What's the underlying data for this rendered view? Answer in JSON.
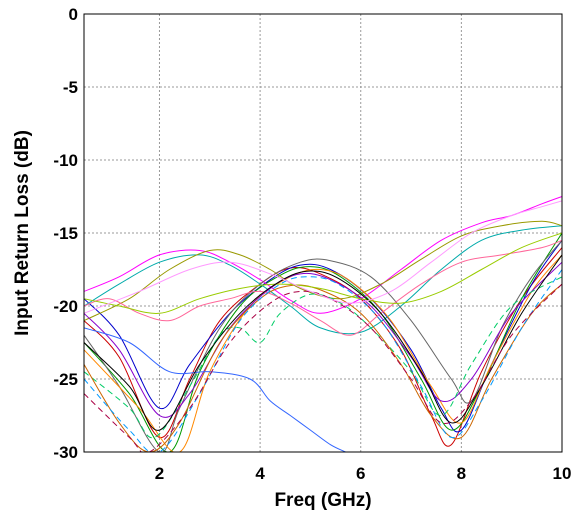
{
  "chart_data": {
    "type": "line",
    "title": "",
    "xlabel": "Freq (GHz)",
    "ylabel": "Input Return Loss (dB)",
    "xlim": [
      0.5,
      10
    ],
    "ylim": [
      -30,
      0
    ],
    "xticks": [
      2,
      4,
      6,
      8,
      10
    ],
    "yticks": [
      0,
      -5,
      -10,
      -15,
      -20,
      -25,
      -30
    ],
    "xtick_labels": [
      "2",
      "4",
      "6",
      "8",
      "10"
    ],
    "ytick_labels": [
      "0",
      "-5",
      "-10",
      "-15",
      "-20",
      "-25",
      "-30"
    ],
    "grid": true,
    "legend": "none",
    "series": [
      {
        "color": "#cc0000",
        "dash": "solid",
        "points": [
          [
            0.5,
            -21.0
          ],
          [
            1.2,
            -23.5
          ],
          [
            2.0,
            -29.0
          ],
          [
            2.6,
            -25.0
          ],
          [
            3.2,
            -21.0
          ],
          [
            4.0,
            -18.5
          ],
          [
            4.6,
            -17.4
          ],
          [
            5.2,
            -17.8
          ],
          [
            6.0,
            -19.5
          ],
          [
            6.8,
            -23.0
          ],
          [
            7.4,
            -27.5
          ],
          [
            7.8,
            -29.5
          ],
          [
            8.4,
            -24.5
          ],
          [
            9.2,
            -19.5
          ],
          [
            10.0,
            -16.0
          ]
        ]
      },
      {
        "color": "#0000cc",
        "dash": "solid",
        "points": [
          [
            0.5,
            -19.5
          ],
          [
            1.2,
            -22.0
          ],
          [
            2.0,
            -27.0
          ],
          [
            2.6,
            -24.0
          ],
          [
            3.4,
            -20.5
          ],
          [
            4.2,
            -18.2
          ],
          [
            4.8,
            -17.2
          ],
          [
            5.4,
            -17.5
          ],
          [
            6.2,
            -19.5
          ],
          [
            7.0,
            -23.0
          ],
          [
            7.6,
            -27.0
          ],
          [
            8.0,
            -28.5
          ],
          [
            8.6,
            -24.0
          ],
          [
            9.4,
            -18.5
          ],
          [
            10.0,
            -15.5
          ]
        ]
      },
      {
        "color": "#009900",
        "dash": "solid",
        "points": [
          [
            0.5,
            -22.5
          ],
          [
            1.4,
            -26.0
          ],
          [
            2.2,
            -30.0
          ],
          [
            2.8,
            -24.5
          ],
          [
            3.6,
            -20.0
          ],
          [
            4.4,
            -17.9
          ],
          [
            5.0,
            -17.3
          ],
          [
            5.6,
            -18.0
          ],
          [
            6.4,
            -20.5
          ],
          [
            7.2,
            -25.0
          ],
          [
            7.8,
            -28.5
          ],
          [
            8.4,
            -25.5
          ],
          [
            9.2,
            -19.5
          ],
          [
            10.0,
            -15.0
          ]
        ]
      },
      {
        "color": "#ff00ff",
        "dash": "solid",
        "points": [
          [
            0.5,
            -19.0
          ],
          [
            1.2,
            -18.0
          ],
          [
            2.0,
            -16.5
          ],
          [
            2.8,
            -16.2
          ],
          [
            3.4,
            -17.0
          ],
          [
            4.0,
            -18.2
          ],
          [
            4.6,
            -19.6
          ],
          [
            5.2,
            -20.5
          ],
          [
            6.0,
            -19.5
          ],
          [
            6.8,
            -17.5
          ],
          [
            7.6,
            -15.5
          ],
          [
            8.4,
            -14.3
          ],
          [
            9.0,
            -13.8
          ],
          [
            9.6,
            -13.0
          ],
          [
            10.0,
            -12.5
          ]
        ]
      },
      {
        "color": "#00aaaa",
        "dash": "solid",
        "points": [
          [
            0.5,
            -20.0
          ],
          [
            1.2,
            -18.5
          ],
          [
            2.0,
            -17.0
          ],
          [
            2.8,
            -16.5
          ],
          [
            3.4,
            -17.2
          ],
          [
            4.0,
            -18.5
          ],
          [
            4.6,
            -20.0
          ],
          [
            5.2,
            -21.5
          ],
          [
            6.0,
            -21.8
          ],
          [
            6.8,
            -20.0
          ],
          [
            7.6,
            -17.5
          ],
          [
            8.4,
            -15.5
          ],
          [
            9.2,
            -14.8
          ],
          [
            10.0,
            -14.5
          ]
        ]
      },
      {
        "color": "#999900",
        "dash": "solid",
        "points": [
          [
            0.5,
            -21.0
          ],
          [
            1.4,
            -19.5
          ],
          [
            2.2,
            -17.5
          ],
          [
            3.0,
            -16.2
          ],
          [
            3.6,
            -16.5
          ],
          [
            4.2,
            -17.5
          ],
          [
            4.8,
            -18.8
          ],
          [
            5.6,
            -19.5
          ],
          [
            6.4,
            -18.5
          ],
          [
            7.2,
            -16.8
          ],
          [
            8.0,
            -15.2
          ],
          [
            8.8,
            -14.5
          ],
          [
            9.6,
            -14.2
          ],
          [
            10.0,
            -14.5
          ]
        ]
      },
      {
        "color": "#666666",
        "dash": "solid",
        "points": [
          [
            0.5,
            -22.0
          ],
          [
            1.2,
            -25.5
          ],
          [
            2.0,
            -30.0
          ],
          [
            2.4,
            -27.0
          ],
          [
            3.2,
            -21.5
          ],
          [
            4.0,
            -18.5
          ],
          [
            4.8,
            -17.0
          ],
          [
            5.4,
            -16.9
          ],
          [
            6.2,
            -18.0
          ],
          [
            7.0,
            -21.0
          ],
          [
            7.8,
            -25.0
          ],
          [
            8.2,
            -26.5
          ],
          [
            8.8,
            -21.5
          ],
          [
            9.4,
            -18.0
          ],
          [
            10.0,
            -15.5
          ]
        ]
      },
      {
        "color": "#ff8800",
        "dash": "solid",
        "points": [
          [
            0.5,
            -23.0
          ],
          [
            1.6,
            -27.0
          ],
          [
            2.4,
            -30.0
          ],
          [
            3.0,
            -24.5
          ],
          [
            3.8,
            -20.0
          ],
          [
            4.6,
            -18.0
          ],
          [
            5.2,
            -17.5
          ],
          [
            5.8,
            -18.3
          ],
          [
            6.6,
            -21.0
          ],
          [
            7.4,
            -25.5
          ],
          [
            8.0,
            -28.0
          ],
          [
            8.6,
            -24.0
          ],
          [
            9.4,
            -19.0
          ],
          [
            10.0,
            -16.5
          ]
        ]
      },
      {
        "color": "#8800cc",
        "dash": "solid",
        "points": [
          [
            0.5,
            -20.5
          ],
          [
            1.2,
            -23.0
          ],
          [
            2.0,
            -27.5
          ],
          [
            2.6,
            -26.0
          ],
          [
            3.4,
            -21.5
          ],
          [
            4.2,
            -18.8
          ],
          [
            4.8,
            -17.8
          ],
          [
            5.4,
            -18.2
          ],
          [
            6.2,
            -20.0
          ],
          [
            7.0,
            -23.5
          ],
          [
            7.6,
            -26.5
          ],
          [
            8.2,
            -25.0
          ],
          [
            9.0,
            -20.5
          ],
          [
            10.0,
            -17.0
          ]
        ]
      },
      {
        "color": "#00cc66",
        "dash": "6,4",
        "points": [
          [
            0.5,
            -24.5
          ],
          [
            1.4,
            -27.0
          ],
          [
            1.9,
            -29.0
          ],
          [
            2.6,
            -25.5
          ],
          [
            3.2,
            -22.0
          ],
          [
            3.6,
            -21.5
          ],
          [
            4.0,
            -22.5
          ],
          [
            4.4,
            -20.5
          ],
          [
            5.0,
            -19.2
          ],
          [
            5.6,
            -19.8
          ],
          [
            6.2,
            -21.5
          ],
          [
            7.0,
            -24.5
          ],
          [
            7.6,
            -27.5
          ],
          [
            8.2,
            -24.0
          ],
          [
            9.0,
            -20.0
          ],
          [
            10.0,
            -18.0
          ]
        ]
      },
      {
        "color": "#cc6600",
        "dash": "solid",
        "points": [
          [
            0.5,
            -24.0
          ],
          [
            1.2,
            -28.0
          ],
          [
            1.8,
            -30.0
          ],
          [
            2.4,
            -28.0
          ],
          [
            3.2,
            -22.5
          ],
          [
            4.0,
            -19.5
          ],
          [
            4.6,
            -18.6
          ],
          [
            5.2,
            -18.9
          ],
          [
            6.0,
            -20.5
          ],
          [
            6.8,
            -24.0
          ],
          [
            7.4,
            -27.5
          ],
          [
            8.0,
            -29.0
          ],
          [
            8.6,
            -25.0
          ],
          [
            9.4,
            -20.5
          ],
          [
            10.0,
            -18.5
          ]
        ]
      },
      {
        "color": "#3366ff",
        "dash": "solid",
        "points": [
          [
            0.5,
            -21.5
          ],
          [
            1.4,
            -22.5
          ],
          [
            2.2,
            -24.5
          ],
          [
            3.0,
            -24.5
          ],
          [
            3.8,
            -25.0
          ],
          [
            4.2,
            -26.5
          ],
          [
            4.6,
            -27.5
          ],
          [
            5.0,
            -28.5
          ],
          [
            5.4,
            -29.5
          ],
          [
            5.7,
            -30.0
          ]
        ]
      },
      {
        "color": "#ff6699",
        "dash": "solid",
        "points": [
          [
            0.5,
            -20.0
          ],
          [
            1.0,
            -19.5
          ],
          [
            1.6,
            -20.5
          ],
          [
            2.2,
            -21.0
          ],
          [
            2.8,
            -20.0
          ],
          [
            3.4,
            -19.5
          ],
          [
            4.0,
            -19.0
          ],
          [
            4.6,
            -19.8
          ],
          [
            5.2,
            -21.0
          ],
          [
            5.8,
            -22.0
          ],
          [
            6.4,
            -20.5
          ],
          [
            7.2,
            -18.5
          ],
          [
            8.0,
            -17.0
          ],
          [
            8.8,
            -16.5
          ],
          [
            9.6,
            -16.0
          ],
          [
            10.0,
            -15.5
          ]
        ]
      },
      {
        "color": "#0099ff",
        "dash": "6,4",
        "points": [
          [
            0.5,
            -25.0
          ],
          [
            1.4,
            -28.5
          ],
          [
            2.0,
            -30.0
          ],
          [
            2.8,
            -26.0
          ],
          [
            3.6,
            -21.0
          ],
          [
            4.4,
            -18.5
          ],
          [
            5.0,
            -18.0
          ],
          [
            5.6,
            -18.6
          ],
          [
            6.4,
            -21.0
          ],
          [
            7.2,
            -25.5
          ],
          [
            7.8,
            -29.0
          ],
          [
            8.4,
            -26.5
          ],
          [
            9.2,
            -21.5
          ],
          [
            10.0,
            -17.5
          ]
        ]
      },
      {
        "color": "#99cc00",
        "dash": "solid",
        "points": [
          [
            0.5,
            -19.5
          ],
          [
            1.2,
            -20.0
          ],
          [
            2.0,
            -20.5
          ],
          [
            2.8,
            -19.5
          ],
          [
            3.6,
            -18.8
          ],
          [
            4.4,
            -18.5
          ],
          [
            5.2,
            -18.8
          ],
          [
            6.0,
            -19.5
          ],
          [
            6.8,
            -19.8
          ],
          [
            7.6,
            -19.0
          ],
          [
            8.4,
            -17.5
          ],
          [
            9.2,
            -16.0
          ],
          [
            10.0,
            -15.0
          ]
        ]
      },
      {
        "color": "#000000",
        "dash": "solid",
        "points": [
          [
            0.5,
            -22.5
          ],
          [
            1.4,
            -25.5
          ],
          [
            2.0,
            -28.5
          ],
          [
            2.8,
            -24.0
          ],
          [
            3.6,
            -20.5
          ],
          [
            4.4,
            -18.3
          ],
          [
            5.0,
            -17.6
          ],
          [
            5.6,
            -18.2
          ],
          [
            6.4,
            -20.5
          ],
          [
            7.2,
            -24.5
          ],
          [
            7.8,
            -28.0
          ],
          [
            8.4,
            -25.5
          ],
          [
            9.2,
            -20.5
          ],
          [
            10.0,
            -16.5
          ]
        ]
      },
      {
        "color": "#aa0044",
        "dash": "6,4",
        "points": [
          [
            0.5,
            -26.0
          ],
          [
            1.4,
            -29.0
          ],
          [
            1.8,
            -30.0
          ],
          [
            2.6,
            -27.0
          ],
          [
            3.4,
            -22.5
          ],
          [
            4.2,
            -19.8
          ],
          [
            4.8,
            -19.0
          ],
          [
            5.4,
            -19.5
          ],
          [
            6.2,
            -21.5
          ],
          [
            7.0,
            -25.0
          ],
          [
            7.6,
            -28.0
          ],
          [
            8.2,
            -26.5
          ],
          [
            9.0,
            -22.0
          ],
          [
            10.0,
            -18.5
          ]
        ]
      },
      {
        "color": "#ff99ff",
        "dash": "solid",
        "points": [
          [
            0.5,
            -20.5
          ],
          [
            1.6,
            -19.0
          ],
          [
            2.6,
            -17.5
          ],
          [
            3.4,
            -17.0
          ],
          [
            4.2,
            -17.8
          ],
          [
            5.0,
            -19.0
          ],
          [
            5.8,
            -19.8
          ],
          [
            6.6,
            -19.0
          ],
          [
            7.4,
            -17.0
          ],
          [
            8.2,
            -15.0
          ],
          [
            9.0,
            -13.8
          ],
          [
            9.6,
            -13.2
          ],
          [
            10.0,
            -12.8
          ]
        ]
      }
    ]
  }
}
